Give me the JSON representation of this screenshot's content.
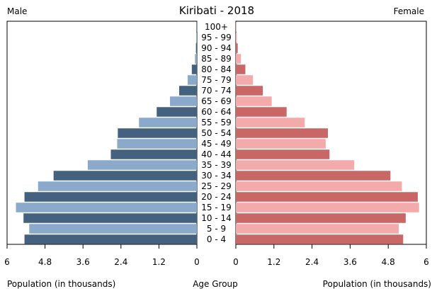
{
  "chart_data": {
    "type": "bar",
    "title": "Kiribati - 2018",
    "left_label": "Male",
    "right_label": "Female",
    "xlabel_left": "Population (in thousands)",
    "xlabel_center": "Age Group",
    "xlabel_right": "Population (in thousands)",
    "xlim": [
      0,
      6
    ],
    "tick_values": [
      6,
      4.8,
      3.6,
      2.4,
      1.2,
      0
    ],
    "tick_labels": [
      "6",
      "4.8",
      "3.6",
      "2.4",
      "1.2",
      "0"
    ],
    "right_tick_labels": [
      "0",
      "1.2",
      "2.4",
      "3.6",
      "4.8",
      "6"
    ],
    "categories": [
      "100+",
      "95 - 99",
      "90 - 94",
      "85 - 89",
      "80 - 84",
      "75 - 79",
      "70 - 74",
      "65 - 69",
      "60 - 64",
      "55 - 59",
      "50 - 54",
      "45 - 49",
      "40 - 44",
      "35 - 39",
      "30 - 34",
      "25 - 29",
      "20 - 24",
      "15 - 19",
      "10 - 14",
      "5 - 9",
      "0 - 4"
    ],
    "series": [
      {
        "name": "Male",
        "values": [
          0.003,
          0.02,
          0.03,
          0.06,
          0.16,
          0.29,
          0.56,
          0.85,
          1.27,
          1.83,
          2.5,
          2.52,
          2.72,
          3.45,
          4.53,
          5.02,
          5.45,
          5.72,
          5.48,
          5.3,
          5.45
        ]
      },
      {
        "name": "Female",
        "values": [
          0.005,
          0.03,
          0.06,
          0.16,
          0.3,
          0.54,
          0.85,
          1.13,
          1.6,
          2.17,
          2.9,
          2.83,
          2.95,
          3.73,
          4.87,
          5.23,
          5.73,
          5.77,
          5.35,
          5.13,
          5.27
        ]
      }
    ],
    "colors": {
      "male_dark": "#44617f",
      "male_light": "#8aa9cb",
      "female_dark": "#c96767",
      "female_light": "#f2aaaa"
    },
    "grid": false
  }
}
